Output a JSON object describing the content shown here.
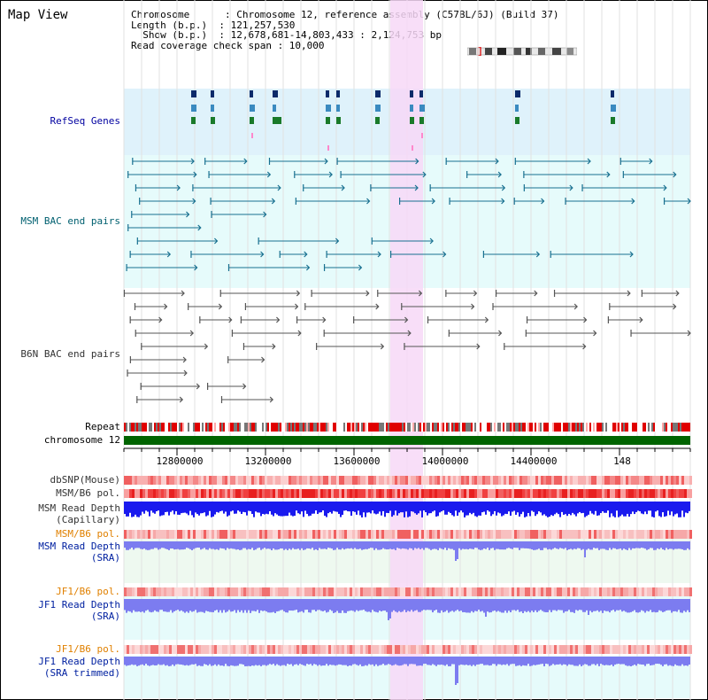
{
  "title": "Map View",
  "info": {
    "chromosome": "Chromosome      : Chromosome 12, reference assembly (C57BL/6J) (Build 37)",
    "length": "Length (b.p.)  : 121,257,530",
    "show": "  Show (b.p.)  : 12,678,681-14,803,433 : 2,124,753 bp",
    "coverage": "Read coverage check span : 10,000"
  },
  "tracks": {
    "refseq": "RefSeq Genes",
    "msm_bac": "MSM BAC end pairs",
    "b6n_bac": "B6N BAC end pairs",
    "repeat": "Repeat",
    "chromosome": "chromosome 12",
    "dbsnp": "dbSNP(Mouse)",
    "msm_b6_pol_1": "MSM/B6 pol.",
    "msm_read_depth_cap_1": "MSM Read Depth",
    "msm_read_depth_cap_2": "(Capillary)",
    "msm_b6_pol_2": "MSM/B6 pol.",
    "msm_read_depth_sra_1": "MSM Read Depth",
    "msm_read_depth_sra_2": "(SRA)",
    "jf1_b6_pol_1": "JF1/B6 pol.",
    "jf1_read_depth_sra_1": "JF1 Read Depth",
    "jf1_read_depth_sra_2": "(SRA)",
    "jf1_b6_pol_2": "JF1/B6 pol.",
    "jf1_read_depth_trim_1": "JF1 Read Depth",
    "jf1_read_depth_trim_2": "(SRA trimmed)"
  },
  "axis_ticks": [
    "12800000",
    "13200000",
    "13600000",
    "14000000",
    "14400000",
    "148"
  ],
  "colors": {
    "refseq_bg": "#dff2fb",
    "bac_bg": "#e6fbfb",
    "highlight": "#f7d8f7",
    "chromosome_bar": "#006400",
    "depth_blue": "#1a1aee",
    "depth_light": "#7c7cf0",
    "pol_red": "#f06060"
  }
}
